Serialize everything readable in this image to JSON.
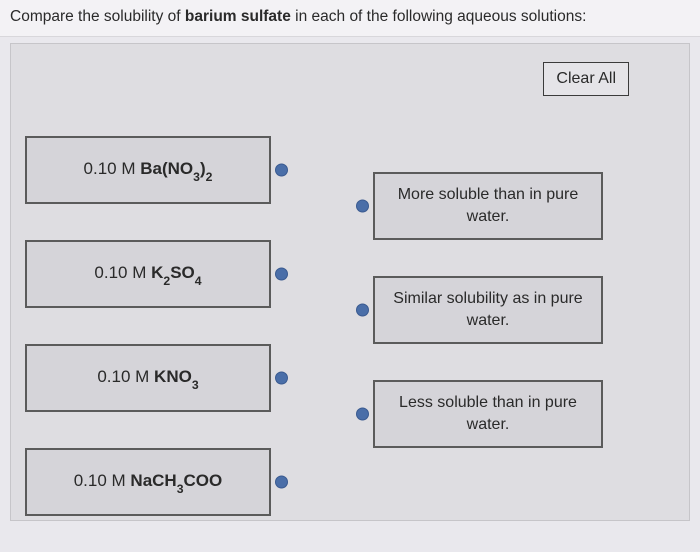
{
  "prompt": {
    "pre": "Compare the solubility of ",
    "bold": "barium sulfate",
    "post": " in each of the following aqueous solutions:"
  },
  "clear_label": "Clear All",
  "colors": {
    "page_bg": "#e9e8ed",
    "panel_bg": "#dedde1",
    "box_bg": "#d5d4d9",
    "border": "#5b5b5b",
    "dot": "#4a6ea8",
    "text": "#2a2a2a"
  },
  "sources": [
    {
      "conc": "0.10 M ",
      "formula_html": "Ba(NO<sub>3</sub>)<sub>2</sub>"
    },
    {
      "conc": "0.10 M ",
      "formula_html": "K<sub>2</sub>SO<sub>4</sub>"
    },
    {
      "conc": "0.10 M ",
      "formula_html": "KNO<sub>3</sub>"
    },
    {
      "conc": "0.10 M ",
      "formula_html": "NaCH<sub>3</sub>COO"
    }
  ],
  "targets": [
    "More soluble than in pure water.",
    "Similar solubility as in pure water.",
    "Less soluble than in pure water."
  ]
}
